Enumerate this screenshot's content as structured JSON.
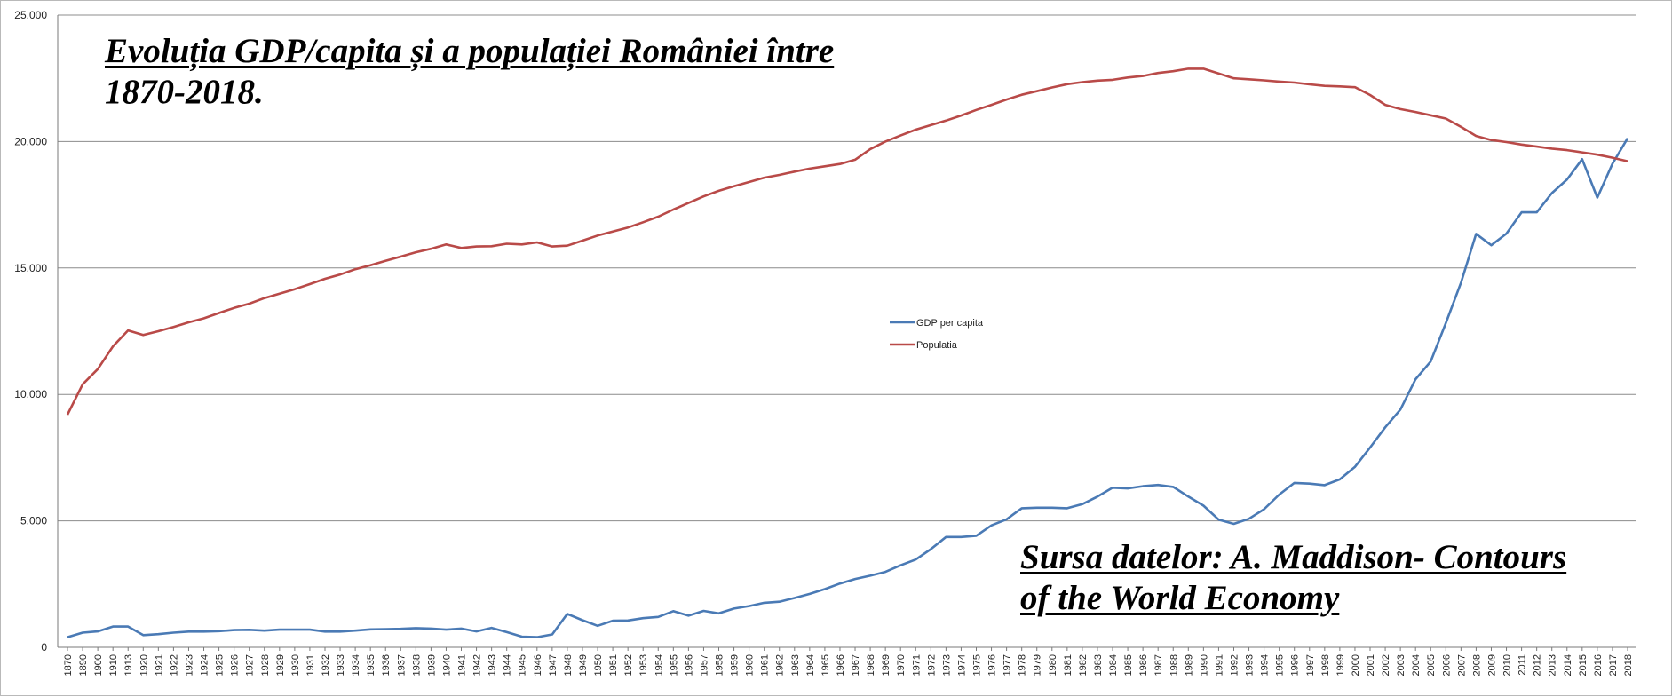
{
  "chart_data": {
    "type": "line",
    "title": "Evoluția GDP/capita și a populației României între 1870-2018.",
    "title_lines": [
      "Evoluția GDP/capita și a populației României între",
      "1870-2018."
    ],
    "annotation_lines": [
      "Sursa datelor: A. Maddison- Contours",
      "of the World Economy"
    ],
    "ylim": [
      0,
      25000
    ],
    "yticks": [
      0,
      5000,
      10000,
      15000,
      20000,
      25000
    ],
    "ytick_labels": [
      "0",
      "5.000",
      "10.000",
      "15.000",
      "20.000",
      "25.000"
    ],
    "grid": "horizontal",
    "legend_position": "center",
    "categories": [
      "1870",
      "1890",
      "1900",
      "1910",
      "1913",
      "1920",
      "1921",
      "1922",
      "1923",
      "1924",
      "1925",
      "1926",
      "1927",
      "1928",
      "1929",
      "1930",
      "1931",
      "1932",
      "1933",
      "1934",
      "1935",
      "1936",
      "1937",
      "1938",
      "1939",
      "1940",
      "1941",
      "1942",
      "1943",
      "1944",
      "1945",
      "1946",
      "1947",
      "1948",
      "1949",
      "1950",
      "1951",
      "1952",
      "1953",
      "1954",
      "1955",
      "1956",
      "1957",
      "1958",
      "1959",
      "1960",
      "1961",
      "1962",
      "1963",
      "1964",
      "1965",
      "1966",
      "1967",
      "1968",
      "1969",
      "1970",
      "1971",
      "1972",
      "1973",
      "1974",
      "1975",
      "1976",
      "1977",
      "1978",
      "1979",
      "1980",
      "1981",
      "1982",
      "1983",
      "1984",
      "1985",
      "1986",
      "1987",
      "1988",
      "1989",
      "1990",
      "1991",
      "1992",
      "1993",
      "1994",
      "1995",
      "1996",
      "1997",
      "1998",
      "1999",
      "2000",
      "2001",
      "2002",
      "2003",
      "2004",
      "2005",
      "2006",
      "2007",
      "2008",
      "2009",
      "2010",
      "2011",
      "2012",
      "2013",
      "2014",
      "2015",
      "2016",
      "2017",
      "2018"
    ],
    "series": [
      {
        "name": "GDP per capita",
        "color": "#4a7ab5",
        "values": [
          400,
          580,
          630,
          820,
          820,
          480,
          520,
          580,
          620,
          620,
          640,
          680,
          690,
          660,
          700,
          700,
          700,
          620,
          620,
          660,
          710,
          720,
          730,
          760,
          740,
          700,
          740,
          630,
          770,
          600,
          420,
          400,
          510,
          1320,
          1070,
          850,
          1050,
          1060,
          1150,
          1200,
          1430,
          1250,
          1440,
          1340,
          1530,
          1630,
          1760,
          1800,
          1950,
          2110,
          2300,
          2520,
          2700,
          2830,
          2980,
          3240,
          3470,
          3880,
          4360,
          4360,
          4410,
          4820,
          5060,
          5500,
          5520,
          5520,
          5500,
          5660,
          5960,
          6310,
          6280,
          6370,
          6420,
          6340,
          5960,
          5600,
          5050,
          4880,
          5080,
          5460,
          6040,
          6500,
          6470,
          6410,
          6640,
          7140,
          7900,
          8700,
          9400,
          10600,
          11300,
          12820,
          14420,
          16350,
          15900,
          16360,
          17200,
          17200,
          17960,
          18500,
          19300,
          17780,
          19120,
          20130
        ]
      },
      {
        "name": "Populatia",
        "color": "#b94a48",
        "values": [
          9200,
          10400,
          11000,
          11900,
          12530,
          12350,
          12500,
          12670,
          12850,
          13010,
          13220,
          13420,
          13590,
          13810,
          13980,
          14160,
          14360,
          14570,
          14740,
          14950,
          15110,
          15280,
          15450,
          15620,
          15760,
          15930,
          15790,
          15850,
          15860,
          15960,
          15930,
          16010,
          15850,
          15880,
          16080,
          16280,
          16440,
          16600,
          16810,
          17030,
          17310,
          17570,
          17830,
          18050,
          18230,
          18400,
          18570,
          18680,
          18810,
          18930,
          19020,
          19110,
          19280,
          19700,
          20000,
          20240,
          20470,
          20650,
          20830,
          21030,
          21250,
          21450,
          21660,
          21850,
          21990,
          22140,
          22270,
          22350,
          22410,
          22440,
          22530,
          22590,
          22710,
          22780,
          22880,
          22880,
          22690,
          22500,
          22460,
          22420,
          22370,
          22330,
          22260,
          22200,
          22180,
          22150,
          21840,
          21450,
          21280,
          21170,
          21040,
          20910,
          20580,
          20220,
          20060,
          19980,
          19880,
          19800,
          19720,
          19660,
          19570,
          19480,
          19360,
          19220
        ]
      }
    ]
  }
}
